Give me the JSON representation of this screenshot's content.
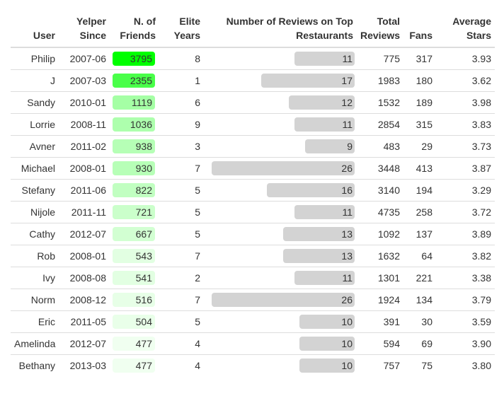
{
  "columns": {
    "user": "User",
    "since": [
      "Yelper",
      "Since"
    ],
    "friends": [
      "N. of",
      "Friends"
    ],
    "elite": [
      "Elite",
      "Years"
    ],
    "top": [
      "Number of Reviews on Top",
      "Restaurants"
    ],
    "reviews": [
      "Total",
      "Reviews"
    ],
    "fans": "Fans",
    "stars": [
      "Average",
      "Stars"
    ]
  },
  "colors": {
    "friends_max": "#00ff00",
    "top_bar": "#d3d3d3",
    "border": "#dddddd"
  },
  "rows": [
    {
      "user": "Philip",
      "since": "2007-06",
      "friends": "3795",
      "elite": "8",
      "top": "11",
      "reviews": "775",
      "fans": "317",
      "stars": "3.93"
    },
    {
      "user": "J",
      "since": "2007-03",
      "friends": "2355",
      "elite": "1",
      "top": "17",
      "reviews": "1983",
      "fans": "180",
      "stars": "3.62"
    },
    {
      "user": "Sandy",
      "since": "2010-01",
      "friends": "1119",
      "elite": "6",
      "top": "12",
      "reviews": "1532",
      "fans": "189",
      "stars": "3.98"
    },
    {
      "user": "Lorrie",
      "since": "2008-11",
      "friends": "1036",
      "elite": "9",
      "top": "11",
      "reviews": "2854",
      "fans": "315",
      "stars": "3.83"
    },
    {
      "user": "Avner",
      "since": "2011-02",
      "friends": "938",
      "elite": "3",
      "top": "9",
      "reviews": "483",
      "fans": "29",
      "stars": "3.73"
    },
    {
      "user": "Michael",
      "since": "2008-01",
      "friends": "930",
      "elite": "7",
      "top": "26",
      "reviews": "3448",
      "fans": "413",
      "stars": "3.87"
    },
    {
      "user": "Stefany",
      "since": "2011-06",
      "friends": "822",
      "elite": "5",
      "top": "16",
      "reviews": "3140",
      "fans": "194",
      "stars": "3.29"
    },
    {
      "user": "Nijole",
      "since": "2011-11",
      "friends": "721",
      "elite": "5",
      "top": "11",
      "reviews": "4735",
      "fans": "258",
      "stars": "3.72"
    },
    {
      "user": "Cathy",
      "since": "2012-07",
      "friends": "667",
      "elite": "5",
      "top": "13",
      "reviews": "1092",
      "fans": "137",
      "stars": "3.89"
    },
    {
      "user": "Rob",
      "since": "2008-01",
      "friends": "543",
      "elite": "7",
      "top": "13",
      "reviews": "1632",
      "fans": "64",
      "stars": "3.82"
    },
    {
      "user": "Ivy",
      "since": "2008-08",
      "friends": "541",
      "elite": "2",
      "top": "11",
      "reviews": "1301",
      "fans": "221",
      "stars": "3.38"
    },
    {
      "user": "Norm",
      "since": "2008-12",
      "friends": "516",
      "elite": "7",
      "top": "26",
      "reviews": "1924",
      "fans": "134",
      "stars": "3.79"
    },
    {
      "user": "Eric",
      "since": "2011-05",
      "friends": "504",
      "elite": "5",
      "top": "10",
      "reviews": "391",
      "fans": "30",
      "stars": "3.59"
    },
    {
      "user": "Amelinda",
      "since": "2012-07",
      "friends": "477",
      "elite": "4",
      "top": "10",
      "reviews": "594",
      "fans": "69",
      "stars": "3.90"
    },
    {
      "user": "Bethany",
      "since": "2013-03",
      "friends": "477",
      "elite": "4",
      "top": "10",
      "reviews": "757",
      "fans": "75",
      "stars": "3.80"
    }
  ]
}
